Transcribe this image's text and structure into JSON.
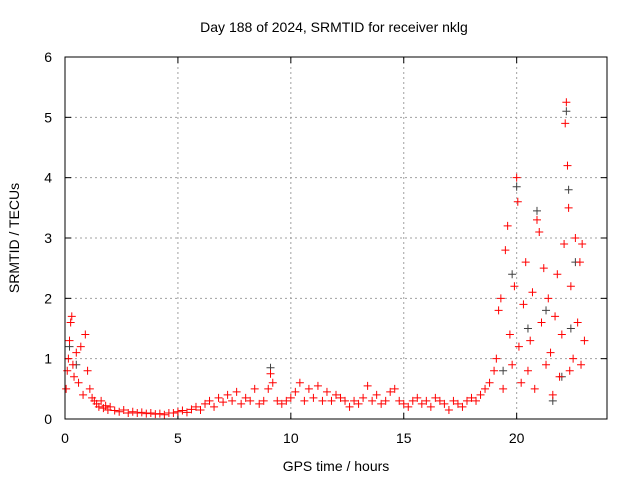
{
  "chart_data": {
    "type": "scatter",
    "title": "Day 188 of 2024, SRMTID for receiver nklg",
    "xlabel": "GPS time / hours",
    "ylabel": "SRMTID / TECUs",
    "xlim": [
      0,
      24
    ],
    "ylim": [
      0,
      6
    ],
    "xticks": [
      0,
      5,
      10,
      15,
      20
    ],
    "yticks": [
      0,
      1,
      2,
      3,
      4,
      5,
      6
    ],
    "grid": true,
    "legend": "none",
    "colors": {
      "primary": "#ff0000",
      "secondary": "#404040"
    },
    "series": [
      {
        "name": "secondary",
        "color": "#404040",
        "points": [
          [
            0.2,
            1.2
          ],
          [
            0.5,
            0.9
          ],
          [
            9.1,
            0.85
          ],
          [
            19.8,
            2.4
          ],
          [
            20.0,
            3.85
          ],
          [
            20.9,
            3.45
          ],
          [
            21.3,
            1.8
          ],
          [
            21.6,
            0.3
          ],
          [
            22.0,
            0.7
          ],
          [
            22.2,
            5.1
          ],
          [
            22.3,
            3.8
          ],
          [
            22.4,
            1.5
          ],
          [
            22.6,
            2.6
          ],
          [
            20.5,
            1.5
          ],
          [
            19.4,
            0.8
          ]
        ]
      },
      {
        "name": "primary",
        "color": "#ff0000",
        "points": [
          [
            0.05,
            0.5
          ],
          [
            0.1,
            0.8
          ],
          [
            0.15,
            1.0
          ],
          [
            0.2,
            1.3
          ],
          [
            0.25,
            1.6
          ],
          [
            0.3,
            1.7
          ],
          [
            0.35,
            0.9
          ],
          [
            0.4,
            0.7
          ],
          [
            0.5,
            1.1
          ],
          [
            0.6,
            0.6
          ],
          [
            0.7,
            1.2
          ],
          [
            0.8,
            0.4
          ],
          [
            0.9,
            1.4
          ],
          [
            1.0,
            0.8
          ],
          [
            1.1,
            0.5
          ],
          [
            1.2,
            0.35
          ],
          [
            1.3,
            0.3
          ],
          [
            1.4,
            0.25
          ],
          [
            1.5,
            0.2
          ],
          [
            1.6,
            0.3
          ],
          [
            1.7,
            0.18
          ],
          [
            1.8,
            0.22
          ],
          [
            1.9,
            0.15
          ],
          [
            2.0,
            0.2
          ],
          [
            2.2,
            0.14
          ],
          [
            2.4,
            0.12
          ],
          [
            2.6,
            0.15
          ],
          [
            2.8,
            0.1
          ],
          [
            3.0,
            0.12
          ],
          [
            3.2,
            0.1
          ],
          [
            3.4,
            0.11
          ],
          [
            3.6,
            0.09
          ],
          [
            3.8,
            0.1
          ],
          [
            4.0,
            0.08
          ],
          [
            4.2,
            0.09
          ],
          [
            4.4,
            0.07
          ],
          [
            4.6,
            0.1
          ],
          [
            4.8,
            0.1
          ],
          [
            5.0,
            0.12
          ],
          [
            5.2,
            0.14
          ],
          [
            5.4,
            0.11
          ],
          [
            5.6,
            0.16
          ],
          [
            5.8,
            0.2
          ],
          [
            6.0,
            0.15
          ],
          [
            6.2,
            0.25
          ],
          [
            6.4,
            0.3
          ],
          [
            6.6,
            0.2
          ],
          [
            6.8,
            0.35
          ],
          [
            7.0,
            0.28
          ],
          [
            7.2,
            0.4
          ],
          [
            7.4,
            0.3
          ],
          [
            7.6,
            0.45
          ],
          [
            7.8,
            0.25
          ],
          [
            8.0,
            0.35
          ],
          [
            8.2,
            0.3
          ],
          [
            8.4,
            0.5
          ],
          [
            8.6,
            0.25
          ],
          [
            8.8,
            0.3
          ],
          [
            9.0,
            0.5
          ],
          [
            9.1,
            0.75
          ],
          [
            9.2,
            0.6
          ],
          [
            9.4,
            0.3
          ],
          [
            9.6,
            0.25
          ],
          [
            9.8,
            0.3
          ],
          [
            10.0,
            0.35
          ],
          [
            10.2,
            0.45
          ],
          [
            10.4,
            0.6
          ],
          [
            10.6,
            0.3
          ],
          [
            10.8,
            0.5
          ],
          [
            11.0,
            0.35
          ],
          [
            11.2,
            0.55
          ],
          [
            11.4,
            0.3
          ],
          [
            11.6,
            0.45
          ],
          [
            11.8,
            0.3
          ],
          [
            12.0,
            0.4
          ],
          [
            12.2,
            0.35
          ],
          [
            12.4,
            0.3
          ],
          [
            12.6,
            0.2
          ],
          [
            12.8,
            0.3
          ],
          [
            13.0,
            0.25
          ],
          [
            13.2,
            0.35
          ],
          [
            13.4,
            0.55
          ],
          [
            13.6,
            0.3
          ],
          [
            13.8,
            0.4
          ],
          [
            14.0,
            0.25
          ],
          [
            14.2,
            0.3
          ],
          [
            14.4,
            0.45
          ],
          [
            14.6,
            0.5
          ],
          [
            14.8,
            0.3
          ],
          [
            15.0,
            0.25
          ],
          [
            15.2,
            0.2
          ],
          [
            15.4,
            0.3
          ],
          [
            15.6,
            0.35
          ],
          [
            15.8,
            0.25
          ],
          [
            16.0,
            0.3
          ],
          [
            16.2,
            0.2
          ],
          [
            16.4,
            0.35
          ],
          [
            16.6,
            0.3
          ],
          [
            16.8,
            0.25
          ],
          [
            17.0,
            0.15
          ],
          [
            17.2,
            0.3
          ],
          [
            17.4,
            0.25
          ],
          [
            17.6,
            0.2
          ],
          [
            17.8,
            0.3
          ],
          [
            18.0,
            0.35
          ],
          [
            18.2,
            0.3
          ],
          [
            18.4,
            0.4
          ],
          [
            18.6,
            0.5
          ],
          [
            18.8,
            0.6
          ],
          [
            19.0,
            0.8
          ],
          [
            19.1,
            1.0
          ],
          [
            19.2,
            1.8
          ],
          [
            19.3,
            2.0
          ],
          [
            19.4,
            0.5
          ],
          [
            19.5,
            2.8
          ],
          [
            19.6,
            3.2
          ],
          [
            19.7,
            1.4
          ],
          [
            19.8,
            0.9
          ],
          [
            19.9,
            2.2
          ],
          [
            20.0,
            4.0
          ],
          [
            20.05,
            3.6
          ],
          [
            20.1,
            1.2
          ],
          [
            20.2,
            0.6
          ],
          [
            20.3,
            1.9
          ],
          [
            20.4,
            2.6
          ],
          [
            20.5,
            0.8
          ],
          [
            20.6,
            1.3
          ],
          [
            20.7,
            2.1
          ],
          [
            20.8,
            0.5
          ],
          [
            20.9,
            3.3
          ],
          [
            21.0,
            3.1
          ],
          [
            21.1,
            1.6
          ],
          [
            21.2,
            2.5
          ],
          [
            21.3,
            0.9
          ],
          [
            21.4,
            2.0
          ],
          [
            21.5,
            1.1
          ],
          [
            21.6,
            0.4
          ],
          [
            21.7,
            1.7
          ],
          [
            21.8,
            2.4
          ],
          [
            21.9,
            0.7
          ],
          [
            22.0,
            1.4
          ],
          [
            22.1,
            2.9
          ],
          [
            22.15,
            4.9
          ],
          [
            22.2,
            5.25
          ],
          [
            22.25,
            4.2
          ],
          [
            22.3,
            3.5
          ],
          [
            22.35,
            0.8
          ],
          [
            22.4,
            2.2
          ],
          [
            22.5,
            1.0
          ],
          [
            22.6,
            3.0
          ],
          [
            22.7,
            1.6
          ],
          [
            22.8,
            2.6
          ],
          [
            22.85,
            0.9
          ],
          [
            22.9,
            2.9
          ],
          [
            23.0,
            1.3
          ]
        ]
      }
    ]
  }
}
